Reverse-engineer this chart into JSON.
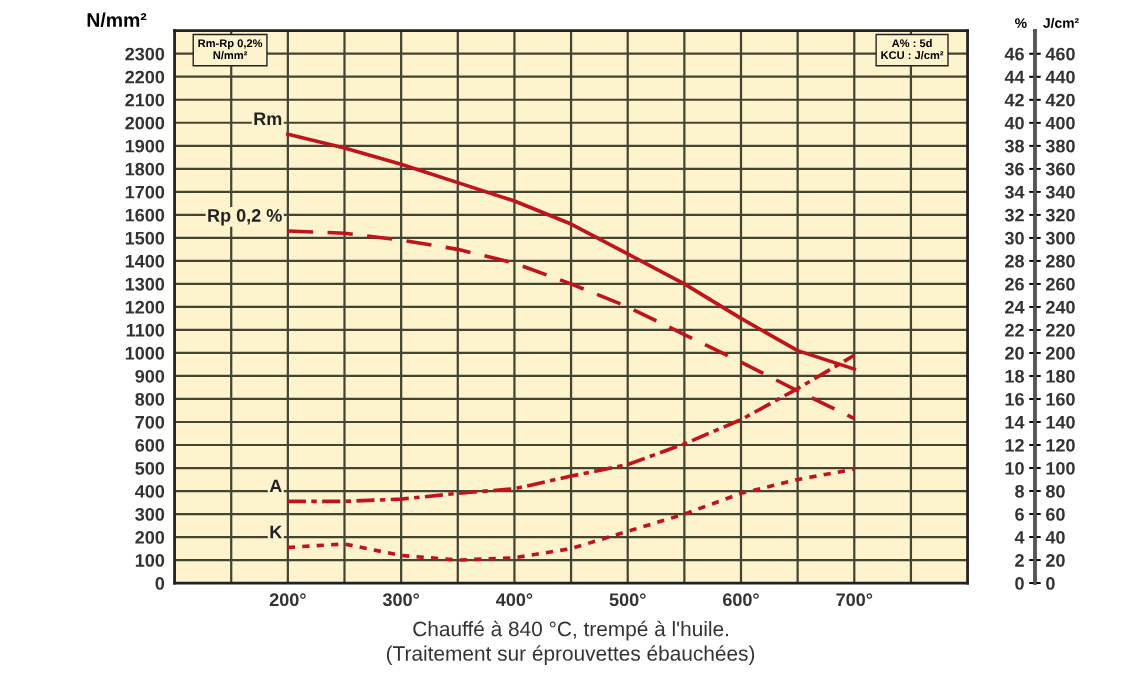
{
  "chart_data": {
    "type": "line",
    "xlabel": "Chauffé à 840 °C, trempé à l'huile.",
    "ylabel": "N/mm²",
    "y2label": "%",
    "y3label": "J/cm²",
    "annotations": [
      "(Traitement sur éprouvettes ébauchées)",
      "Rm-Rp 0,2%\nN/mm²",
      "A% : 5d\nKCU : J/cm²"
    ],
    "x": [
      200,
      250,
      300,
      350,
      400,
      450,
      500,
      550,
      600,
      650,
      700
    ],
    "xlim": [
      100,
      800
    ],
    "xticks": [
      {
        "value": 150,
        "label": null
      },
      {
        "value": 200,
        "label": "200°"
      },
      {
        "value": 250,
        "label": null
      },
      {
        "value": 300,
        "label": "300°"
      },
      {
        "value": 350,
        "label": null
      },
      {
        "value": 400,
        "label": "400°"
      },
      {
        "value": 450,
        "label": null
      },
      {
        "value": 500,
        "label": "500°"
      },
      {
        "value": 550,
        "label": null
      },
      {
        "value": 600,
        "label": "600°"
      },
      {
        "value": 650,
        "label": null
      },
      {
        "value": 700,
        "label": "700°"
      },
      {
        "value": 750,
        "label": null
      }
    ],
    "ylim": [
      0,
      2400
    ],
    "yticks": [
      0,
      100,
      200,
      300,
      400,
      500,
      600,
      700,
      800,
      900,
      1000,
      1100,
      1200,
      1300,
      1400,
      1500,
      1600,
      1700,
      1800,
      1900,
      2000,
      2100,
      2200,
      2300
    ],
    "y2lim": [
      0,
      48
    ],
    "y2ticks": [
      0,
      2,
      4,
      6,
      8,
      10,
      12,
      14,
      16,
      18,
      20,
      22,
      24,
      26,
      28,
      30,
      32,
      34,
      36,
      38,
      40,
      42,
      44,
      46
    ],
    "y3lim": [
      0,
      480
    ],
    "y3ticks": [
      0,
      20,
      40,
      60,
      80,
      100,
      120,
      140,
      160,
      180,
      200,
      220,
      240,
      260,
      280,
      300,
      320,
      340,
      360,
      380,
      400,
      420,
      440,
      460
    ],
    "grid": true,
    "marker": "none",
    "series": [
      {
        "name": "Rm",
        "color": "#c0141c",
        "line_style": "solid",
        "values": [
          1950,
          1890,
          1820,
          1740,
          1660,
          1560,
          1430,
          1300,
          1150,
          1010,
          930
        ]
      },
      {
        "name": "Rp 0,2 %",
        "color": "#c0141c",
        "line_style": "dashed",
        "values": [
          1530,
          1520,
          1490,
          1450,
          1390,
          1300,
          1200,
          1080,
          960,
          835,
          715
        ]
      },
      {
        "name": "A",
        "color": "#c0141c",
        "line_style": "dashdot",
        "axis": "y2",
        "values": [
          7.1,
          7.1,
          7.3,
          7.8,
          8.2,
          9.3,
          10.3,
          12.1,
          14.2,
          16.9,
          19.8
        ]
      },
      {
        "name": "K",
        "color": "#c0141c",
        "line_style": "dotted",
        "axis": "y3",
        "values": [
          31,
          34,
          24,
          20,
          22,
          30,
          45,
          60,
          78,
          90,
          99
        ]
      }
    ]
  }
}
